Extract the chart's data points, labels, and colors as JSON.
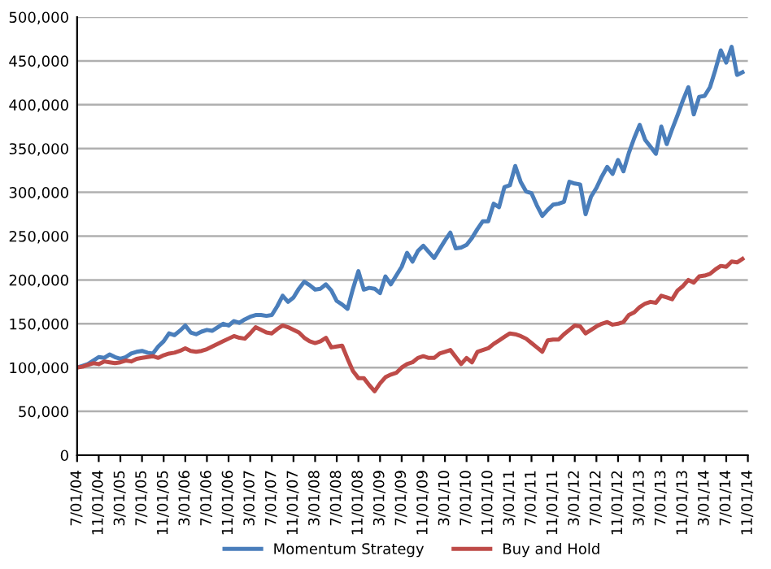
{
  "chart_data": {
    "type": "line",
    "categories": [
      "7/01/04",
      null,
      null,
      null,
      "11/01/04",
      null,
      null,
      null,
      "3/01/05",
      null,
      null,
      null,
      "7/01/05",
      null,
      null,
      null,
      "11/01/05",
      null,
      null,
      null,
      "3/01/06",
      null,
      null,
      null,
      "7/01/06",
      null,
      null,
      null,
      "11/01/06",
      null,
      null,
      null,
      "3/01/07",
      null,
      null,
      null,
      "7/01/07",
      null,
      null,
      null,
      "11/01/07",
      null,
      null,
      null,
      "3/01/08",
      null,
      null,
      null,
      "7/01/08",
      null,
      null,
      null,
      "11/01/08",
      null,
      null,
      null,
      "3/01/09",
      null,
      null,
      null,
      "7/01/09",
      null,
      null,
      null,
      "11/01/09",
      null,
      null,
      null,
      "3/01/10",
      null,
      null,
      null,
      "7/01/10",
      null,
      null,
      null,
      "11/01/10",
      null,
      null,
      null,
      "3/01/11",
      null,
      null,
      null,
      "7/01/11",
      null,
      null,
      null,
      "11/01/11",
      null,
      null,
      null,
      "3/01/12",
      null,
      null,
      null,
      "7/01/12",
      null,
      null,
      null,
      "11/01/12",
      null,
      null,
      null,
      "3/01/13",
      null,
      null,
      null,
      "7/01/13",
      null,
      null,
      null,
      "11/01/13",
      null,
      null,
      null,
      "3/01/14",
      null,
      null,
      null,
      "7/01/14",
      null,
      null,
      null,
      "11/01/14"
    ],
    "series": [
      {
        "name": "Momentum Strategy",
        "color": "#4a7ebb",
        "values": [
          100000,
          102000,
          104000,
          108000,
          112000,
          111000,
          115000,
          112000,
          110000,
          112000,
          116000,
          118000,
          119000,
          117000,
          116000,
          124000,
          130000,
          139000,
          137000,
          142000,
          148000,
          140000,
          138000,
          141000,
          143000,
          142000,
          146000,
          150000,
          148000,
          153000,
          151000,
          155000,
          158000,
          160000,
          160000,
          159000,
          160000,
          170000,
          182000,
          175000,
          180000,
          190000,
          198000,
          194000,
          189000,
          190000,
          195000,
          188000,
          176000,
          172000,
          167000,
          190000,
          210000,
          189000,
          191000,
          190000,
          185000,
          204000,
          195000,
          205000,
          215000,
          231000,
          221000,
          233000,
          239000,
          232000,
          225000,
          235000,
          245000,
          254000,
          236000,
          237000,
          240000,
          248000,
          258000,
          267000,
          267000,
          287000,
          283000,
          306000,
          308000,
          330000,
          312000,
          301000,
          299000,
          285000,
          273000,
          280000,
          286000,
          287000,
          289000,
          312000,
          310000,
          309000,
          275000,
          295000,
          305000,
          318000,
          329000,
          321000,
          337000,
          324000,
          345000,
          362000,
          377000,
          360000,
          352000,
          344000,
          375000,
          355000,
          372000,
          388000,
          405000,
          420000,
          389000,
          409000,
          410000,
          420000,
          440000,
          462000,
          448000,
          466000,
          434000,
          437000,
          null
        ]
      },
      {
        "name": "Buy and Hold",
        "color": "#be4b48",
        "values": [
          100000,
          101000,
          103000,
          105000,
          104000,
          107000,
          106000,
          105000,
          106000,
          108000,
          107000,
          110000,
          111000,
          112000,
          113000,
          111000,
          114000,
          116000,
          117000,
          119000,
          122000,
          119000,
          118000,
          119000,
          121000,
          124000,
          127000,
          130000,
          133000,
          136000,
          134000,
          133000,
          139000,
          146000,
          143000,
          140000,
          139000,
          144000,
          148000,
          146000,
          143000,
          140000,
          134000,
          130000,
          128000,
          130000,
          134000,
          123000,
          124000,
          125000,
          110000,
          96000,
          88000,
          88000,
          80000,
          73000,
          82000,
          89000,
          92000,
          94000,
          100000,
          104000,
          106000,
          111000,
          113000,
          111000,
          111000,
          116000,
          118000,
          120000,
          112000,
          104000,
          111000,
          106000,
          118000,
          120000,
          122000,
          127000,
          131000,
          135000,
          139000,
          138000,
          136000,
          133000,
          128000,
          123000,
          118000,
          131000,
          132000,
          132000,
          138000,
          143000,
          148000,
          147000,
          139000,
          143000,
          147000,
          150000,
          152000,
          149000,
          150000,
          152000,
          160000,
          163000,
          169000,
          173000,
          175000,
          174000,
          182000,
          180000,
          178000,
          188000,
          193000,
          200000,
          197000,
          204000,
          205000,
          207000,
          212000,
          216000,
          215000,
          221000,
          220000,
          224000,
          null
        ]
      }
    ],
    "ylim": [
      0,
      500000
    ],
    "yticks": [
      0,
      {
        "value": 50000,
        "label": "50,000"
      },
      {
        "value": 100000,
        "label": "100,000"
      },
      {
        "value": 150000,
        "label": "150,000"
      },
      {
        "value": 200000,
        "label": "200,000"
      },
      {
        "value": 250000,
        "label": "250,000"
      },
      {
        "value": 300000,
        "label": "300,000"
      },
      {
        "value": 350000,
        "label": "350,000"
      },
      {
        "value": 400000,
        "label": "400,000"
      },
      {
        "value": 450000,
        "label": "450,000"
      },
      {
        "value": 500000,
        "label": "500,000"
      }
    ],
    "grid": "y",
    "legend": "bottom",
    "marker": "none",
    "line_style": "solid"
  }
}
